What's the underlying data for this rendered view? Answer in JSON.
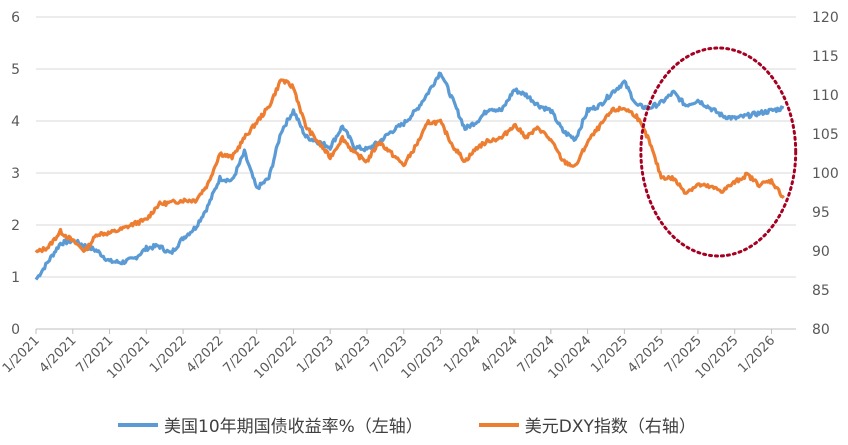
{
  "chart_data": {
    "type": "line",
    "title": "",
    "x_categories": [
      "1/2021",
      "4/2021",
      "7/2021",
      "10/2021",
      "1/2022",
      "4/2022",
      "7/2022",
      "10/2022",
      "1/2023",
      "4/2023",
      "7/2023",
      "10/2023",
      "1/2024",
      "4/2024",
      "7/2024",
      "10/2024",
      "1/2025",
      "4/2025",
      "7/2025",
      "10/2025",
      "1/2026"
    ],
    "y_left": {
      "min": 0,
      "max": 6,
      "ticks": [
        0,
        1,
        2,
        3,
        4,
        5,
        6
      ]
    },
    "y_right": {
      "min": 80,
      "max": 120,
      "ticks": [
        80,
        85,
        90,
        95,
        100,
        105,
        110,
        115,
        120
      ]
    },
    "grid": true,
    "legend_position": "bottom",
    "highlight": {
      "shape": "ellipse",
      "style": "dotted",
      "color": "#a50021",
      "x_from": "3/2025",
      "x_to": "2/2026"
    },
    "series": [
      {
        "name": "美国10年期国债收益率%（左轴）",
        "axis": "left",
        "color": "#5b9bd5",
        "points": [
          {
            "x": "1/2021",
            "y": 0.95
          },
          {
            "x": "2/2021",
            "y": 1.3
          },
          {
            "x": "3/2021",
            "y": 1.65
          },
          {
            "x": "4/2021",
            "y": 1.7
          },
          {
            "x": "5/2021",
            "y": 1.6
          },
          {
            "x": "6/2021",
            "y": 1.5
          },
          {
            "x": "7/2021",
            "y": 1.3
          },
          {
            "x": "8/2021",
            "y": 1.28
          },
          {
            "x": "9/2021",
            "y": 1.35
          },
          {
            "x": "10/2021",
            "y": 1.55
          },
          {
            "x": "11/2021",
            "y": 1.6
          },
          {
            "x": "12/2021",
            "y": 1.45
          },
          {
            "x": "1/2022",
            "y": 1.75
          },
          {
            "x": "2/2022",
            "y": 1.95
          },
          {
            "x": "3/2022",
            "y": 2.35
          },
          {
            "x": "4/2022",
            "y": 2.9
          },
          {
            "x": "5/2022",
            "y": 2.85
          },
          {
            "x": "6/2022",
            "y": 3.4
          },
          {
            "x": "7/2022",
            "y": 2.7
          },
          {
            "x": "8/2022",
            "y": 2.9
          },
          {
            "x": "9/2022",
            "y": 3.8
          },
          {
            "x": "10/2022",
            "y": 4.2
          },
          {
            "x": "11/2022",
            "y": 3.7
          },
          {
            "x": "12/2022",
            "y": 3.6
          },
          {
            "x": "1/2023",
            "y": 3.5
          },
          {
            "x": "2/2023",
            "y": 3.9
          },
          {
            "x": "3/2023",
            "y": 3.5
          },
          {
            "x": "4/2023",
            "y": 3.45
          },
          {
            "x": "5/2023",
            "y": 3.6
          },
          {
            "x": "6/2023",
            "y": 3.8
          },
          {
            "x": "7/2023",
            "y": 3.95
          },
          {
            "x": "8/2023",
            "y": 4.2
          },
          {
            "x": "9/2023",
            "y": 4.55
          },
          {
            "x": "10/2023",
            "y": 4.95
          },
          {
            "x": "11/2023",
            "y": 4.4
          },
          {
            "x": "12/2023",
            "y": 3.85
          },
          {
            "x": "1/2024",
            "y": 4.0
          },
          {
            "x": "2/2024",
            "y": 4.25
          },
          {
            "x": "3/2024",
            "y": 4.2
          },
          {
            "x": "4/2024",
            "y": 4.6
          },
          {
            "x": "5/2024",
            "y": 4.5
          },
          {
            "x": "6/2024",
            "y": 4.3
          },
          {
            "x": "7/2024",
            "y": 4.2
          },
          {
            "x": "8/2024",
            "y": 3.8
          },
          {
            "x": "9/2024",
            "y": 3.65
          },
          {
            "x": "10/2024",
            "y": 4.2
          },
          {
            "x": "11/2024",
            "y": 4.3
          },
          {
            "x": "12/2024",
            "y": 4.55
          },
          {
            "x": "1/2025",
            "y": 4.75
          },
          {
            "x": "2/2025",
            "y": 4.3
          },
          {
            "x": "3/2025",
            "y": 4.25
          },
          {
            "x": "4/2025",
            "y": 4.35
          },
          {
            "x": "5/2025",
            "y": 4.55
          },
          {
            "x": "6/2025",
            "y": 4.3
          },
          {
            "x": "7/2025",
            "y": 4.4
          },
          {
            "x": "8/2025",
            "y": 4.25
          },
          {
            "x": "9/2025",
            "y": 4.1
          },
          {
            "x": "10/2025",
            "y": 4.05
          },
          {
            "x": "11/2025",
            "y": 4.1
          },
          {
            "x": "12/2025",
            "y": 4.15
          },
          {
            "x": "1/2026",
            "y": 4.2
          },
          {
            "x": "2/2026",
            "y": 4.25
          }
        ]
      },
      {
        "name": "美元DXY指数（右轴）",
        "axis": "right",
        "color": "#ed7d31",
        "points": [
          {
            "x": "1/2021",
            "y": 89.8
          },
          {
            "x": "2/2021",
            "y": 90.5
          },
          {
            "x": "3/2021",
            "y": 92.5
          },
          {
            "x": "4/2021",
            "y": 91.3
          },
          {
            "x": "5/2021",
            "y": 90.0
          },
          {
            "x": "6/2021",
            "y": 92.2
          },
          {
            "x": "7/2021",
            "y": 92.3
          },
          {
            "x": "8/2021",
            "y": 92.8
          },
          {
            "x": "9/2021",
            "y": 93.5
          },
          {
            "x": "10/2021",
            "y": 94.0
          },
          {
            "x": "11/2021",
            "y": 96.0
          },
          {
            "x": "12/2021",
            "y": 96.2
          },
          {
            "x": "1/2022",
            "y": 96.5
          },
          {
            "x": "2/2022",
            "y": 96.5
          },
          {
            "x": "3/2022",
            "y": 98.5
          },
          {
            "x": "4/2022",
            "y": 102.5
          },
          {
            "x": "5/2022",
            "y": 102.0
          },
          {
            "x": "6/2022",
            "y": 104.5
          },
          {
            "x": "7/2022",
            "y": 106.5
          },
          {
            "x": "8/2022",
            "y": 108.5
          },
          {
            "x": "9/2022",
            "y": 112.0
          },
          {
            "x": "10/2022",
            "y": 111.0
          },
          {
            "x": "11/2022",
            "y": 106.0
          },
          {
            "x": "12/2022",
            "y": 104.0
          },
          {
            "x": "1/2023",
            "y": 102.0
          },
          {
            "x": "2/2023",
            "y": 104.5
          },
          {
            "x": "3/2023",
            "y": 102.5
          },
          {
            "x": "4/2023",
            "y": 101.5
          },
          {
            "x": "5/2023",
            "y": 104.0
          },
          {
            "x": "6/2023",
            "y": 102.5
          },
          {
            "x": "7/2023",
            "y": 101.0
          },
          {
            "x": "8/2023",
            "y": 103.5
          },
          {
            "x": "9/2023",
            "y": 106.5
          },
          {
            "x": "10/2023",
            "y": 106.5
          },
          {
            "x": "11/2023",
            "y": 103.5
          },
          {
            "x": "12/2023",
            "y": 101.5
          },
          {
            "x": "1/2024",
            "y": 103.3
          },
          {
            "x": "2/2024",
            "y": 104.2
          },
          {
            "x": "3/2024",
            "y": 104.5
          },
          {
            "x": "4/2024",
            "y": 106.2
          },
          {
            "x": "5/2024",
            "y": 104.6
          },
          {
            "x": "6/2024",
            "y": 105.8
          },
          {
            "x": "7/2024",
            "y": 104.2
          },
          {
            "x": "8/2024",
            "y": 101.5
          },
          {
            "x": "9/2024",
            "y": 100.8
          },
          {
            "x": "10/2024",
            "y": 104.0
          },
          {
            "x": "11/2024",
            "y": 106.0
          },
          {
            "x": "12/2024",
            "y": 108.0
          },
          {
            "x": "1/2025",
            "y": 108.3
          },
          {
            "x": "2/2025",
            "y": 107.3
          },
          {
            "x": "3/2025",
            "y": 104.2
          },
          {
            "x": "4/2025",
            "y": 99.5
          },
          {
            "x": "5/2025",
            "y": 99.3
          },
          {
            "x": "6/2025",
            "y": 97.5
          },
          {
            "x": "7/2025",
            "y": 98.5
          },
          {
            "x": "8/2025",
            "y": 98.2
          },
          {
            "x": "9/2025",
            "y": 97.7
          },
          {
            "x": "10/2025",
            "y": 98.8
          },
          {
            "x": "11/2025",
            "y": 99.8
          },
          {
            "x": "12/2025",
            "y": 98.5
          },
          {
            "x": "1/2026",
            "y": 99.0
          },
          {
            "x": "2/2026",
            "y": 96.8
          }
        ]
      }
    ]
  }
}
